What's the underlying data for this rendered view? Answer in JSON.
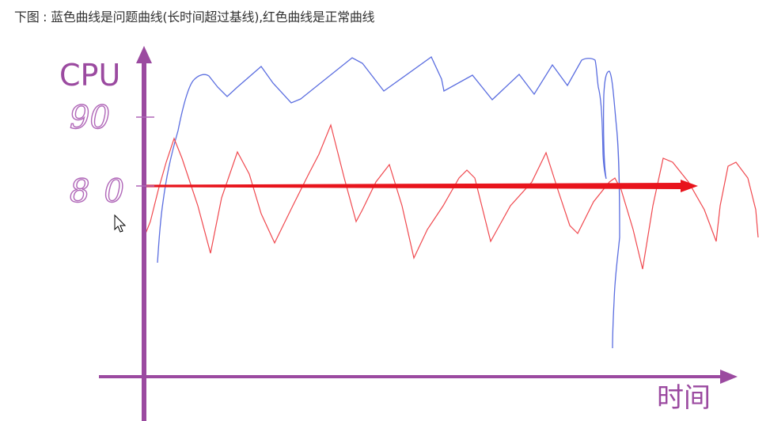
{
  "caption": "下图 : 蓝色曲线是问题曲线(长时间超过基线),红色曲线是正常曲线",
  "diagram": {
    "y_axis_label": "CPU",
    "x_axis_label": "时间",
    "tick_labels": [
      "90",
      "80"
    ],
    "colors": {
      "axis": "#9b4aa0",
      "problem_curve": "#5b6ee0",
      "normal_curve": "#f0484e",
      "baseline": "#e8141c"
    }
  }
}
